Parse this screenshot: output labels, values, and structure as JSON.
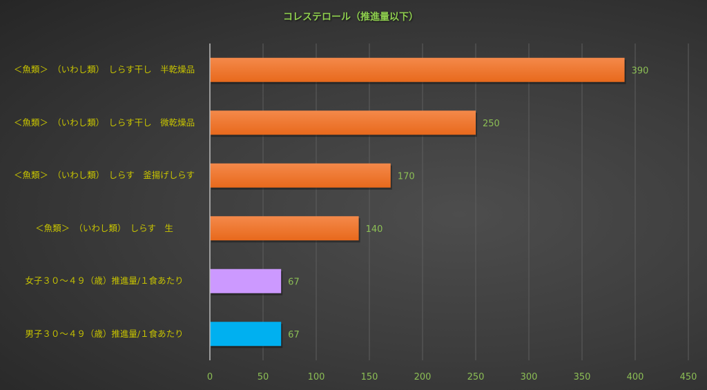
{
  "chart_data": {
    "type": "bar",
    "orientation": "horizontal",
    "title": "コレステロール（推進量以下）",
    "categories": [
      "＜魚類＞　（いわし類）　しらす干し　半乾燥品",
      "＜魚類＞　（いわし類）　しらす干し　微乾燥品",
      "＜魚類＞　（いわし類）　しらす　釜揚げしらす",
      "＜魚類＞　（いわし類）　しらす　生",
      "女子３０～４９（歳）推進量/１食あたり",
      "男子３０～４９（歳）推進量/１食あたり"
    ],
    "values": [
      390,
      250,
      170,
      140,
      67,
      67
    ],
    "value_labels": [
      "390",
      "250",
      "170",
      "140",
      "67",
      "67"
    ],
    "colors": [
      "#ed7126",
      "#ed7126",
      "#ed7126",
      "#ed7126",
      "#cc99ff",
      "#00b0f0"
    ],
    "xlim": [
      0,
      450
    ],
    "xticks": [
      0,
      50,
      100,
      150,
      200,
      250,
      300,
      350,
      400,
      450
    ],
    "xtick_labels": [
      "0",
      "50",
      "100",
      "150",
      "200",
      "250",
      "300",
      "350",
      "400",
      "450"
    ],
    "grid": true,
    "legend": "none",
    "xlabel": "",
    "ylabel": ""
  }
}
